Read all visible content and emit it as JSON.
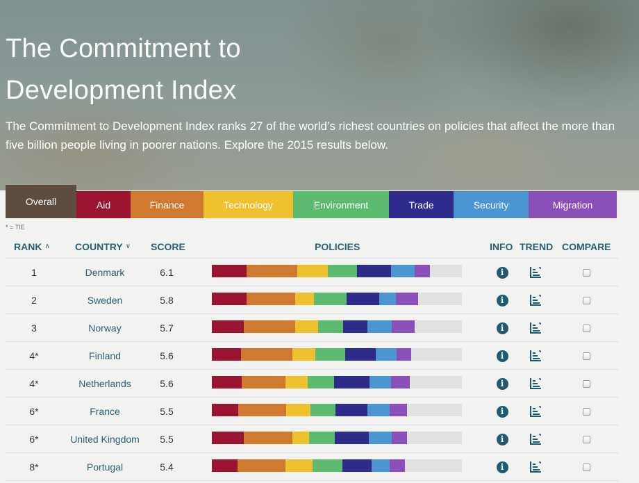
{
  "hero": {
    "title_line1": "The Commitment to",
    "title_line2": "Development Index",
    "description": "The Commitment to Development Index ranks 27 of the world’s richest countries on policies that affect the more than five billion people living in poorer nations. Explore the 2015 results below."
  },
  "tabs": [
    {
      "label": "Overall",
      "color": "#5d4c40",
      "active": true
    },
    {
      "label": "Aid",
      "color": "#9b1530"
    },
    {
      "label": "Finance",
      "color": "#d07a2f"
    },
    {
      "label": "Technology",
      "color": "#f0c12f"
    },
    {
      "label": "Environment",
      "color": "#5cbb6e"
    },
    {
      "label": "Trade",
      "color": "#2e2b8c"
    },
    {
      "label": "Security",
      "color": "#4b95d2"
    },
    {
      "label": "Migration",
      "color": "#8a4fb8"
    }
  ],
  "tie_note": "* = TIE",
  "columns": {
    "rank": "RANK",
    "country": "COUNTRY",
    "score": "SCORE",
    "policies": "POLICIES",
    "info": "INFO",
    "trend": "TREND",
    "compare": "COMPARE"
  },
  "policy_colors": [
    "#9b1530",
    "#d07a2f",
    "#f0c12f",
    "#5cbb6e",
    "#2e2b8c",
    "#4b95d2",
    "#8a4fb8"
  ],
  "rows": [
    {
      "rank": "1",
      "country": "Denmark",
      "score": "6.1",
      "policies": [
        0.139,
        0.203,
        0.122,
        0.117,
        0.136,
        0.094,
        0.061
      ]
    },
    {
      "rank": "2",
      "country": "Sweden",
      "score": "5.8",
      "policies": [
        0.139,
        0.194,
        0.075,
        0.131,
        0.131,
        0.067,
        0.089
      ]
    },
    {
      "rank": "3",
      "country": "Norway",
      "score": "5.7",
      "policies": [
        0.128,
        0.206,
        0.092,
        0.1,
        0.097,
        0.097,
        0.092
      ]
    },
    {
      "rank": "4*",
      "country": "Finland",
      "score": "5.6",
      "policies": [
        0.117,
        0.206,
        0.092,
        0.119,
        0.122,
        0.083,
        0.058
      ]
    },
    {
      "rank": "4*",
      "country": "Netherlands",
      "score": "5.6",
      "policies": [
        0.119,
        0.175,
        0.089,
        0.106,
        0.142,
        0.086,
        0.075
      ]
    },
    {
      "rank": "6*",
      "country": "France",
      "score": "5.5",
      "policies": [
        0.106,
        0.192,
        0.097,
        0.1,
        0.128,
        0.089,
        0.069
      ]
    },
    {
      "rank": "6*",
      "country": "United Kingdom",
      "score": "5.5",
      "policies": [
        0.128,
        0.194,
        0.067,
        0.103,
        0.136,
        0.092,
        0.061
      ]
    },
    {
      "rank": "8*",
      "country": "Portugal",
      "score": "5.4",
      "policies": [
        0.103,
        0.192,
        0.108,
        0.119,
        0.117,
        0.072,
        0.061
      ]
    }
  ]
}
